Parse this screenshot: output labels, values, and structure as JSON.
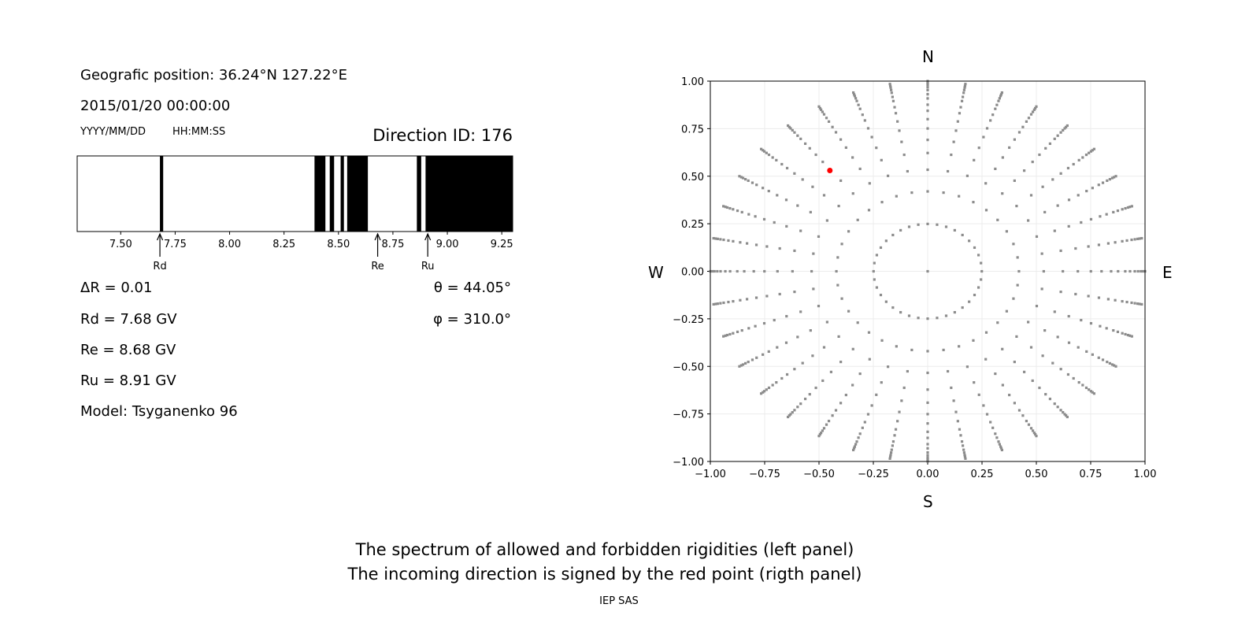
{
  "info": {
    "position": "Geografic position: 36.24°N 127.22°E",
    "datetime": "2015/01/20 00:00:00",
    "date_format": "YYYY/MM/DD",
    "time_format": "HH:MM:SS",
    "direction_id": "Direction ID: 176",
    "delta_r": "ΔR = 0.01",
    "rd": "Rd = 7.68 GV",
    "re": "Re = 8.68 GV",
    "ru": "Ru = 8.91 GV",
    "model": "Model: Tsyganenko 96",
    "theta": "θ = 44.05°",
    "phi": "φ = 310.0°"
  },
  "footer": {
    "line1": "The spectrum of allowed and forbidden rigidities (left panel)",
    "line2": "The incoming direction is signed by the red point (rigth panel)",
    "credit": "IEP SAS"
  },
  "chart_data": [
    {
      "type": "bar",
      "description_kind": "rigidity spectrum",
      "xlim": [
        7.3,
        9.3
      ],
      "xticks": [
        "7.50",
        "7.75",
        "8.00",
        "8.25",
        "8.50",
        "8.75",
        "9.00",
        "9.25"
      ],
      "forbidden_bands": [
        [
          7.68,
          7.695
        ],
        [
          8.39,
          8.44
        ],
        [
          8.46,
          8.48
        ],
        [
          8.51,
          8.525
        ],
        [
          8.54,
          8.635
        ],
        [
          8.86,
          8.88
        ],
        [
          8.9,
          9.3
        ]
      ],
      "markers": [
        {
          "label": "Rd",
          "value": 7.68
        },
        {
          "label": "Re",
          "value": 8.68
        },
        {
          "label": "Ru",
          "value": 8.91
        }
      ],
      "colors": {
        "forbidden": "#000000",
        "allowed": "#ffffff"
      }
    },
    {
      "type": "scatter",
      "xlim": [
        -1,
        1
      ],
      "ylim": [
        -1,
        1
      ],
      "grid": true,
      "xticks": [
        "−1.00",
        "−0.75",
        "−0.50",
        "−0.25",
        "0.00",
        "0.25",
        "0.50",
        "0.75",
        "1.00"
      ],
      "yticks": [
        "−1.00",
        "−0.75",
        "−0.50",
        "−0.25",
        "0.00",
        "0.25",
        "0.50",
        "0.75",
        "1.00"
      ],
      "compass": {
        "north": "N",
        "south": "S",
        "west": "W",
        "east": "E"
      },
      "grid_points": {
        "center": [
          0,
          0
        ],
        "azimuths_deg_step": 10,
        "radii": [
          0.249,
          0.42,
          0.534,
          0.622,
          0.691,
          0.751,
          0.8,
          0.844,
          0.876,
          0.909,
          0.931,
          0.953,
          0.968,
          0.981,
          0.99,
          1.0
        ],
        "color": "#8c8c8c"
      },
      "highlight": {
        "x": -0.45,
        "y": 0.53,
        "color": "#ff0000"
      }
    }
  ]
}
